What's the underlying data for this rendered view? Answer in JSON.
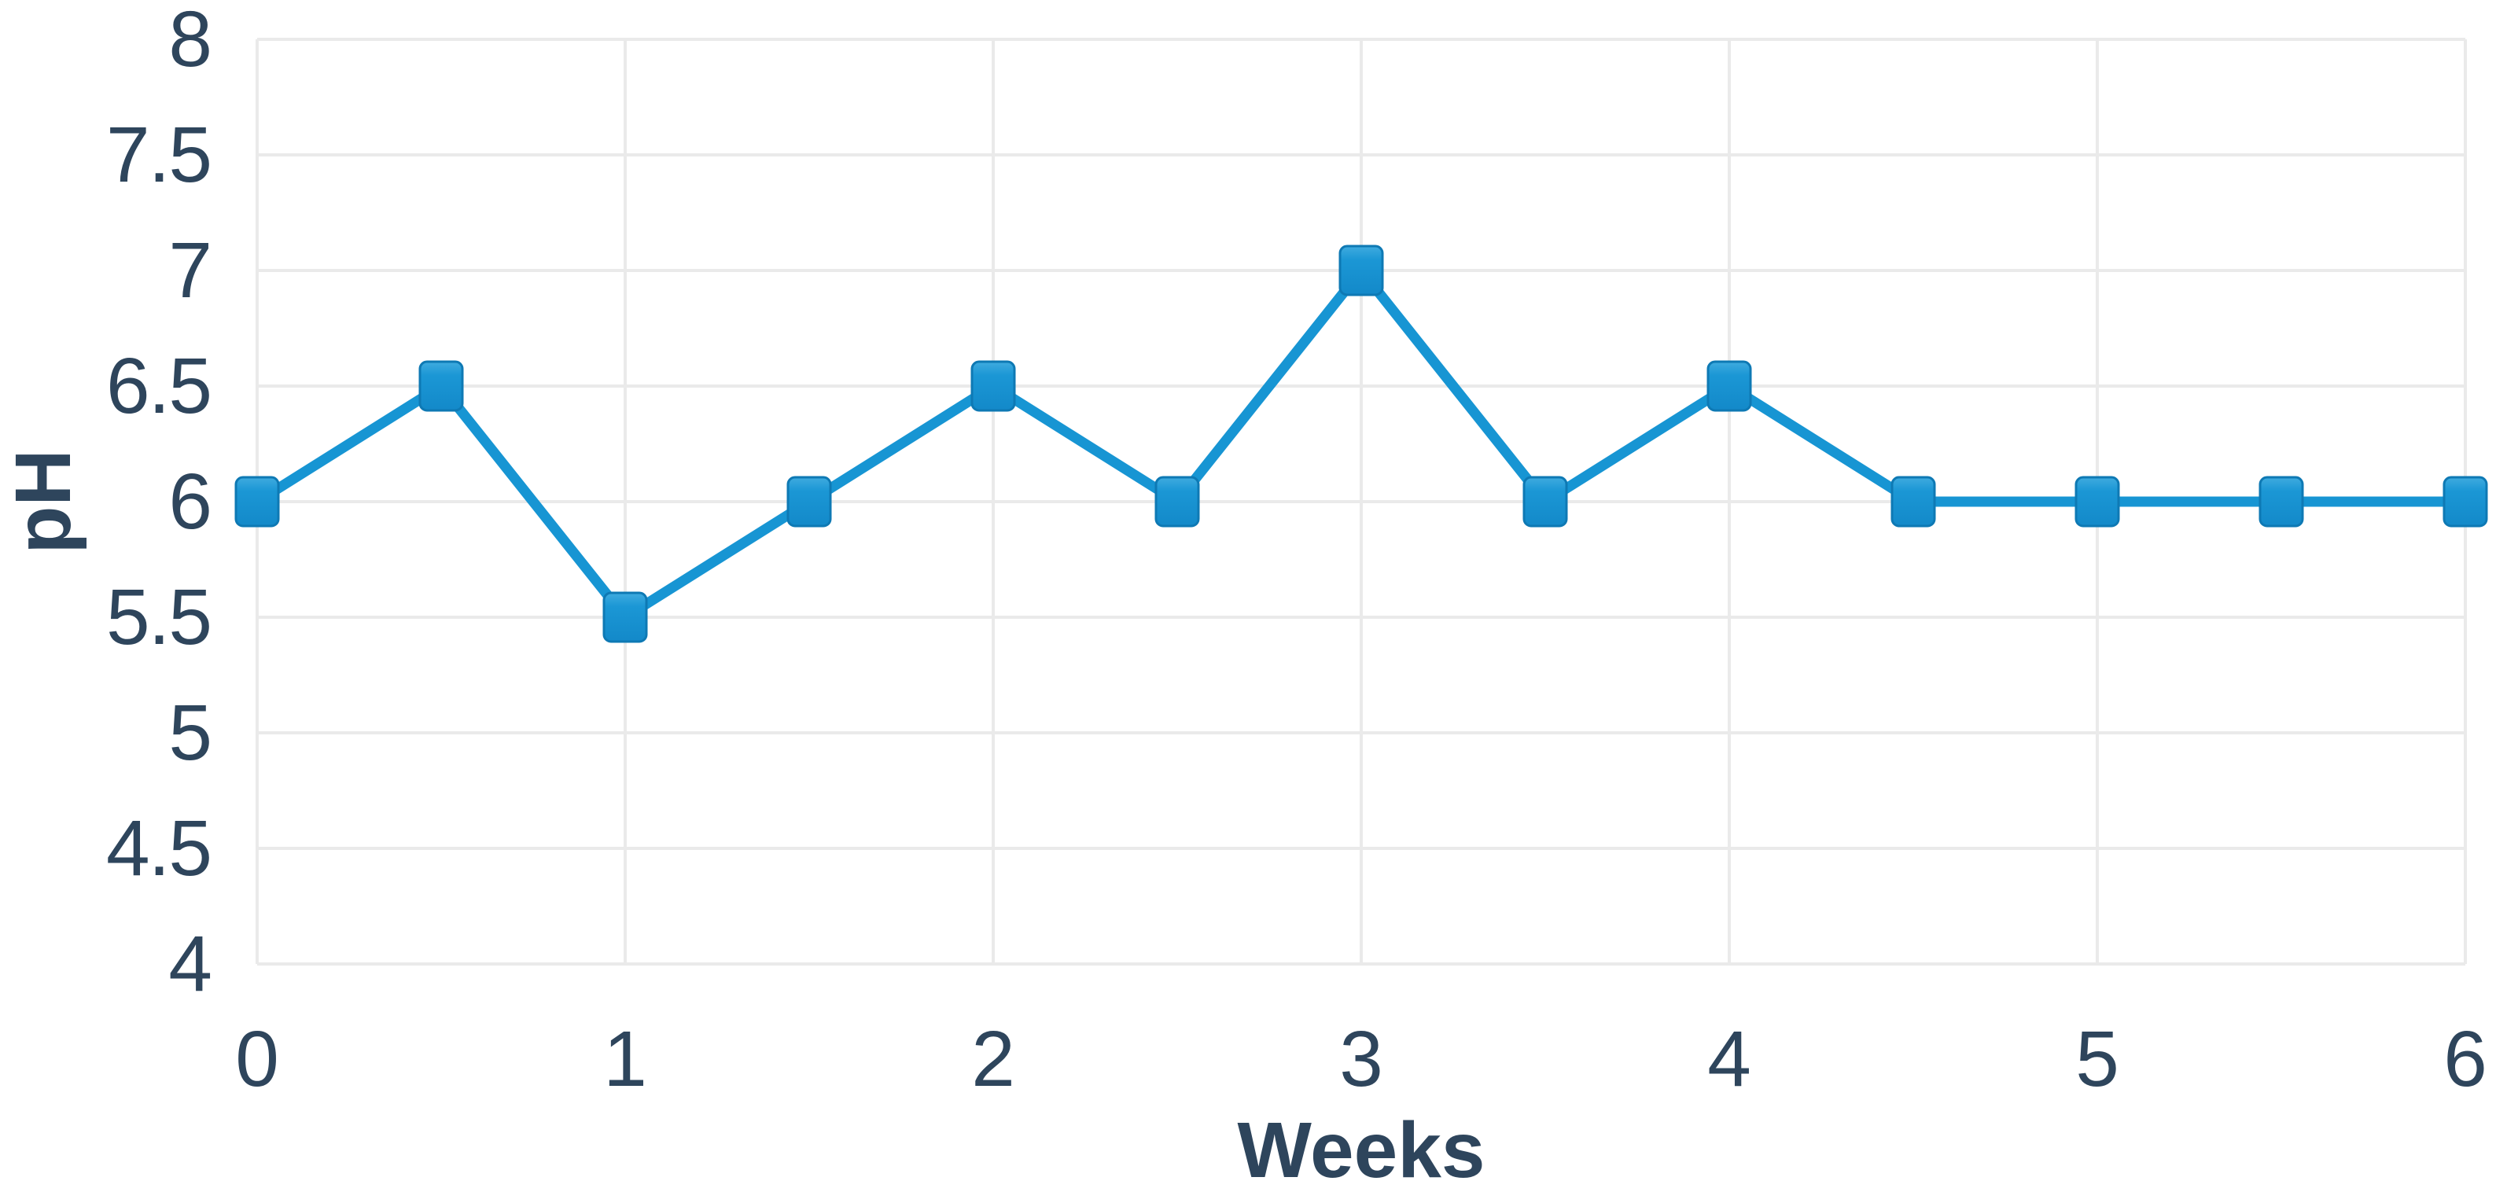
{
  "chart_data": {
    "type": "line",
    "title": "",
    "xlabel": "Weeks",
    "ylabel": "pH",
    "x": [
      0,
      0.5,
      1,
      1.5,
      2,
      2.5,
      3,
      3.5,
      4,
      4.5,
      5,
      5.5,
      6
    ],
    "series": [
      {
        "name": "pH",
        "values": [
          6,
          6.5,
          5.5,
          6,
          6.5,
          6,
          7,
          6,
          6.5,
          6,
          6,
          6,
          6
        ]
      }
    ],
    "xlim": [
      0,
      6
    ],
    "ylim": [
      4,
      8
    ],
    "x_ticks": [
      0,
      1,
      2,
      3,
      4,
      5,
      6
    ],
    "y_ticks": [
      4,
      4.5,
      5,
      5.5,
      6,
      6.5,
      7,
      7.5,
      8
    ],
    "grid": true,
    "legend": false,
    "marker_shape": "square",
    "colors": {
      "line": "#1795D3",
      "marker_fill": "#1B97D5",
      "marker_highlight": "#3FABDF",
      "marker_shade": "#1389C9",
      "marker_border": "#0E79B4",
      "grid": "#EAEAEA",
      "text": "#2E455C",
      "background": "#FFFFFF"
    }
  }
}
